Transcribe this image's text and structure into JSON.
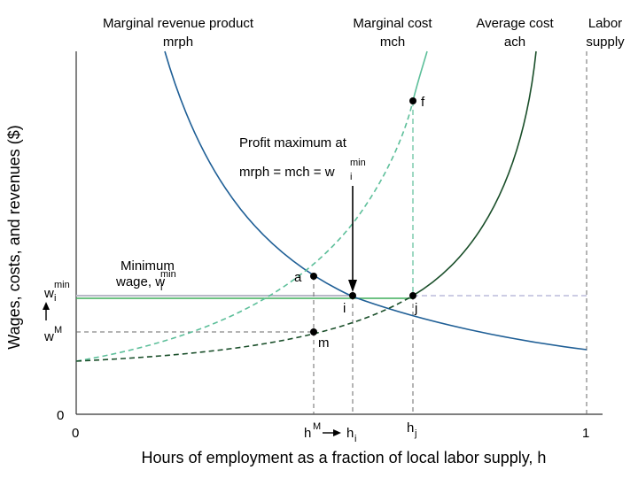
{
  "diagram": {
    "y_axis_title": "Wages, costs, and revenues ($)",
    "x_axis_title": "Hours of employment as a fraction of local labor supply, h",
    "curve_labels": {
      "mrph": {
        "line1": "Marginal revenue product",
        "line2": "mrph"
      },
      "mch": {
        "line1": "Marginal cost",
        "line2": "mch"
      },
      "ach": {
        "line1": "Average cost",
        "line2": "ach"
      },
      "supply": {
        "line1": "Labor",
        "line2": "supply"
      }
    },
    "annotation": {
      "line1": "Profit maximum at",
      "line2_base": "mrph = mch = w",
      "line2_sup": "min",
      "line2_sub": "i"
    },
    "min_wage_label": {
      "line1": "Minimum",
      "line2_base": "wage, w",
      "line2_sup": "min",
      "line2_sub": "i"
    },
    "y_ticks": {
      "zero": "0",
      "wmin_base": "w",
      "wmin_sup": "min",
      "wmin_sub": "i",
      "wM_base": "w",
      "wM_sup": "M"
    },
    "x_ticks": {
      "zero": "0",
      "one": "1",
      "hM_base": "h",
      "hM_sup": "M",
      "hi_base": "h",
      "hi_sub": "i",
      "hj_base": "h",
      "hj_sub": "j"
    },
    "points": {
      "a": "a",
      "f": "f",
      "i": "i",
      "j": "j",
      "m": "m"
    },
    "colors": {
      "mrph": "#1f5f96",
      "mch": "#5dbf9a",
      "ach": "#1a4f2a",
      "min_wage_green": "#3fae5a",
      "min_wage_grey": "#b8b8c8",
      "dashed_grey": "#6a6a6a",
      "supply_dashed": "#9a9ac8"
    }
  }
}
